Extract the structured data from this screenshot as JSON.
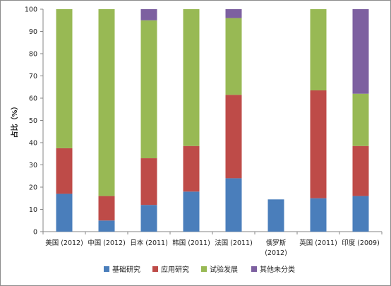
{
  "chart_data": {
    "type": "bar",
    "stacked": true,
    "ylabel": "占比（%）",
    "ylim": [
      0,
      100
    ],
    "yticks": [
      "0",
      "10",
      "20",
      "30",
      "40",
      "50",
      "60",
      "70",
      "80",
      "90",
      "100"
    ],
    "categories": [
      [
        "美国 (2012)"
      ],
      [
        "中国 (2012)"
      ],
      [
        "日本 (2011)"
      ],
      [
        "韩国 (2011)"
      ],
      [
        "法国 (2011)"
      ],
      [
        "俄罗斯",
        "(2012)"
      ],
      [
        "英国 (2011)"
      ],
      [
        "印度 (2009)"
      ]
    ],
    "series": [
      {
        "name": "基础研究",
        "color": "#4a7ebb",
        "values": [
          17,
          5,
          12,
          18,
          24,
          14.5,
          15,
          16
        ]
      },
      {
        "name": "应用研究",
        "color": "#be4b48",
        "values": [
          20.5,
          11,
          21,
          20.5,
          37.5,
          0,
          48.5,
          22.5
        ]
      },
      {
        "name": "试验发展",
        "color": "#98b954",
        "values": [
          62.5,
          84,
          62,
          61.5,
          34.5,
          0,
          36.5,
          23.5
        ]
      },
      {
        "name": "其他未分类",
        "color": "#7d60a0",
        "values": [
          0,
          0,
          5,
          0,
          4,
          0,
          0,
          38
        ]
      }
    ],
    "grid": false,
    "legend": "bottom"
  }
}
